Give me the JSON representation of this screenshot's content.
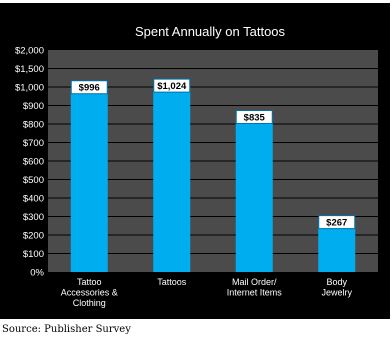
{
  "chart_data": {
    "type": "bar",
    "title": "Spent Annually on Tattoos",
    "categories": [
      [
        "Tattoo",
        "Accessories &",
        "Clothing"
      ],
      [
        "Tattoos"
      ],
      [
        "Mail Order/",
        "Internet Items"
      ],
      [
        "Body",
        "Jewelry"
      ]
    ],
    "values": [
      996,
      1024,
      835,
      267
    ],
    "data_labels": [
      "$996",
      "$1,024",
      "$835",
      "$267"
    ],
    "y_ticks": [
      "0%",
      "$100",
      "$200",
      "$300",
      "$400",
      "$500",
      "$600",
      "$700",
      "$800",
      "$900",
      "$1,000",
      "$1,500",
      "$2,000"
    ],
    "y_scale": "piecewise: linear 0–1,000 in 100 steps, then 1,500 and 2,000 at one step each",
    "grid": true,
    "legend": "none",
    "colors": {
      "background": "#000000",
      "plot": "#4b4b4b",
      "grid": "#000000",
      "bar": "#00aeef",
      "label_box": "#ffffff",
      "label_border": "#0070a8"
    }
  },
  "source": "Source: Publisher Survey"
}
